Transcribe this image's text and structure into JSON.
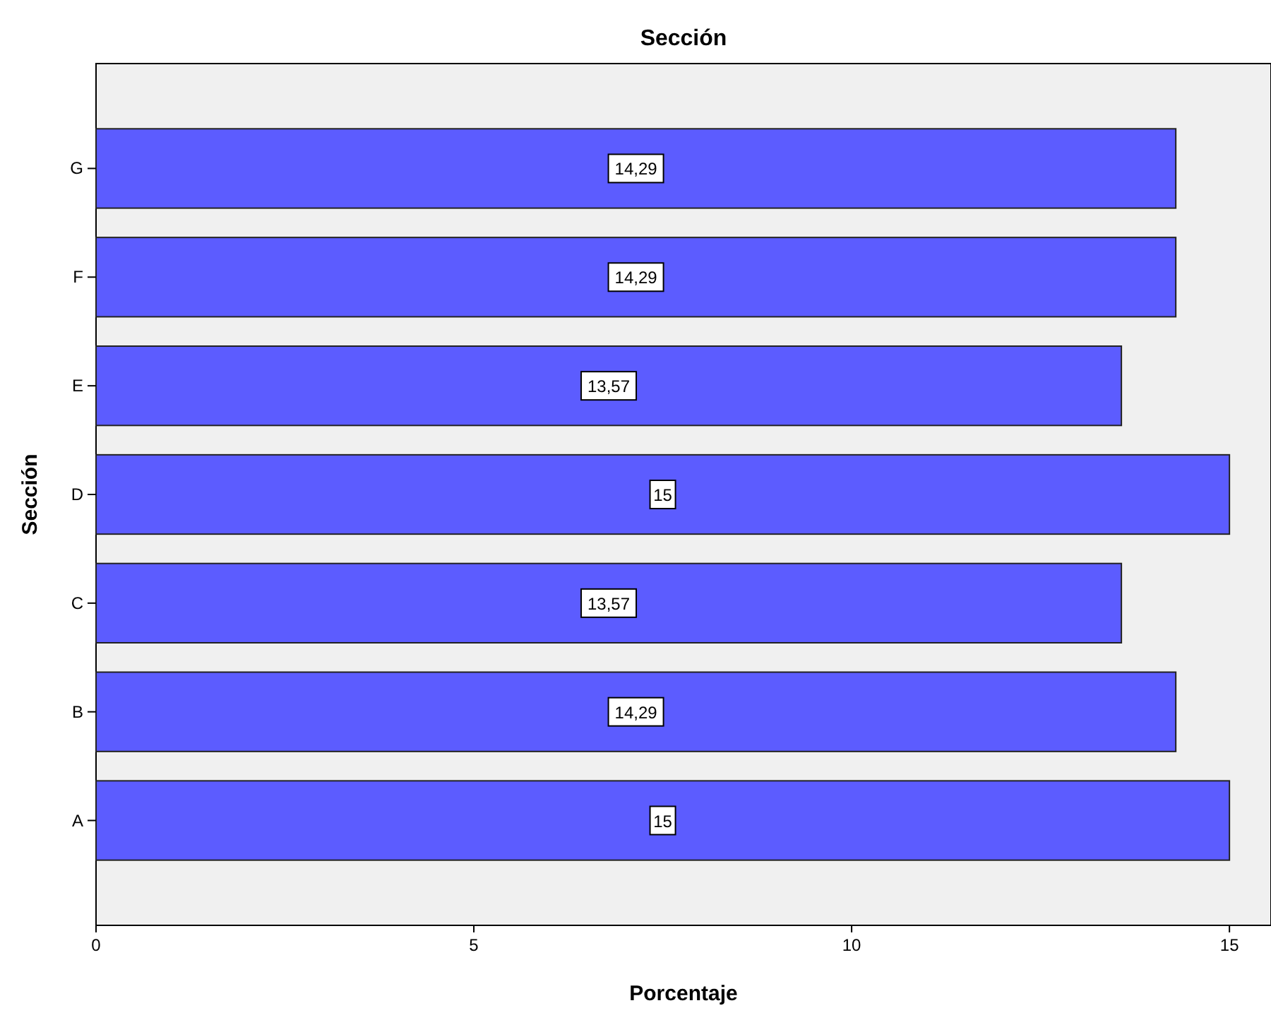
{
  "chart_data": {
    "type": "bar",
    "orientation": "horizontal",
    "title": "Sección",
    "xlabel": "Porcentaje",
    "ylabel": "Sección",
    "categories": [
      "G",
      "F",
      "E",
      "D",
      "C",
      "B",
      "A"
    ],
    "values": [
      14.29,
      14.29,
      13.57,
      15,
      13.57,
      14.29,
      15
    ],
    "value_labels": [
      "14,29",
      "14,29",
      "13,57",
      "15",
      "13,57",
      "14,29",
      "15"
    ],
    "color": "#5c5cff",
    "xlim": [
      0,
      15.55
    ],
    "xticks": [
      0,
      5,
      10,
      15
    ],
    "grid": false
  }
}
